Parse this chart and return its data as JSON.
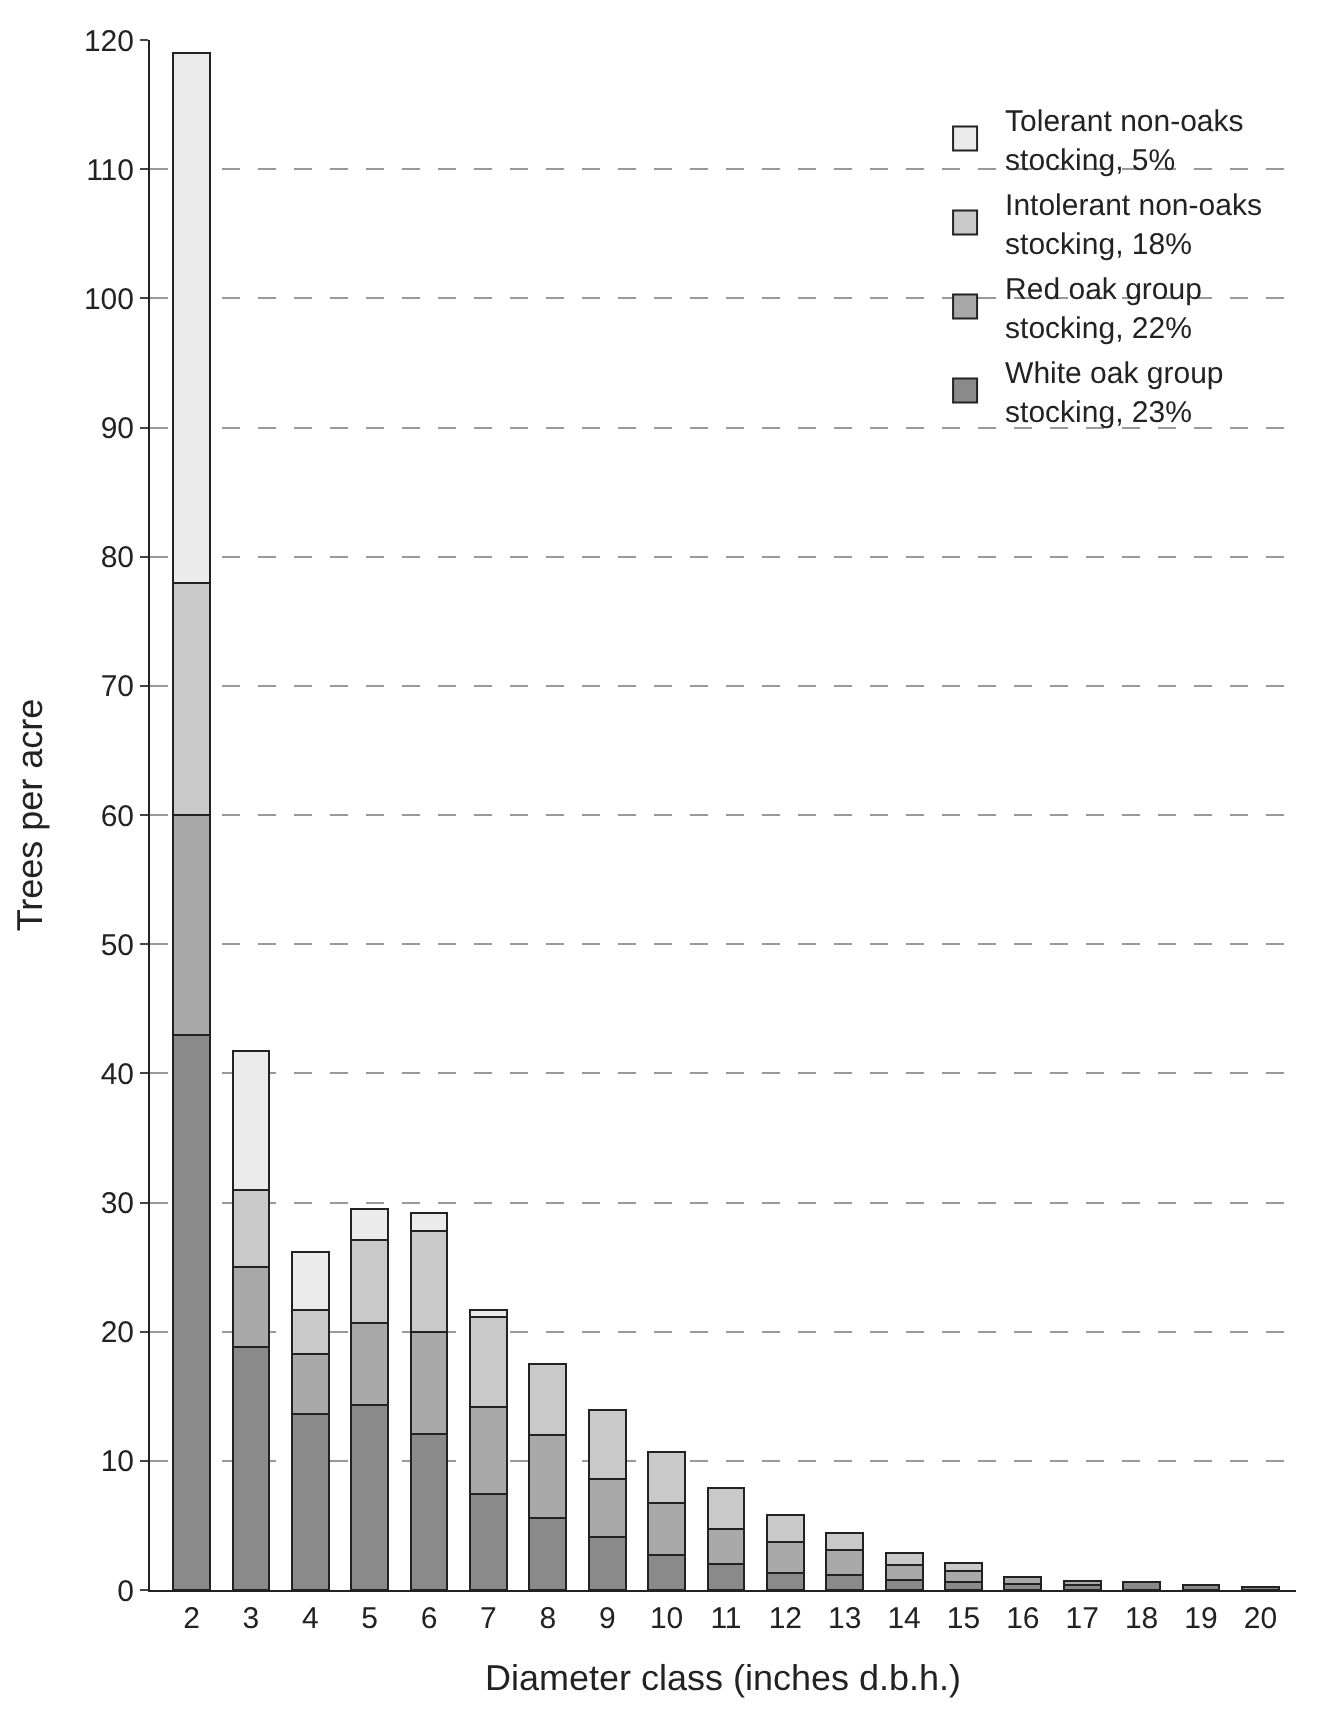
{
  "chart_data": {
    "type": "bar",
    "stacked": true,
    "xlabel": "Diameter class (inches d.b.h.)",
    "ylabel": "Trees per acre",
    "categories": [
      "2",
      "3",
      "4",
      "5",
      "6",
      "7",
      "8",
      "9",
      "10",
      "11",
      "12",
      "13",
      "14",
      "15",
      "16",
      "17",
      "18",
      "19",
      "20"
    ],
    "series": [
      {
        "name": "White oak group\nstocking, 23%",
        "color": "#8a8a8a",
        "values": [
          43,
          18.8,
          13.6,
          14.3,
          12.1,
          7.4,
          5.6,
          4.1,
          2.7,
          2.0,
          1.3,
          1.2,
          0.8,
          0.6,
          0.5,
          0.4,
          0.6,
          0.4,
          0.2
        ]
      },
      {
        "name": "Red oak group\nstocking, 22%",
        "color": "#a9a9a9",
        "values": [
          17,
          6.2,
          4.7,
          6.4,
          7.9,
          6.8,
          6.4,
          4.5,
          4.0,
          2.7,
          2.4,
          1.9,
          1.1,
          0.9,
          0.5,
          0.3,
          null,
          null,
          null
        ]
      },
      {
        "name": "Intolerant non-oaks\nstocking, 18%",
        "color": "#c9c9c9",
        "values": [
          18,
          6,
          3.4,
          6.4,
          7.8,
          6.9,
          5.5,
          5.3,
          4.0,
          3.2,
          2.1,
          1.3,
          1.0,
          0.6,
          null,
          null,
          null,
          null,
          null
        ]
      },
      {
        "name": "Tolerant non-oaks\nstocking, 5%",
        "color": "#ebebeb",
        "values": [
          41,
          10.7,
          4.5,
          2.4,
          1.4,
          0.6,
          null,
          null,
          null,
          null,
          null,
          null,
          null,
          null,
          null,
          null,
          null,
          null,
          null
        ]
      }
    ],
    "ylim": [
      0,
      120
    ],
    "yticks": [
      0,
      10,
      20,
      30,
      40,
      50,
      60,
      70,
      80,
      90,
      100,
      110,
      120
    ],
    "grid": "y",
    "legend": "top right"
  }
}
